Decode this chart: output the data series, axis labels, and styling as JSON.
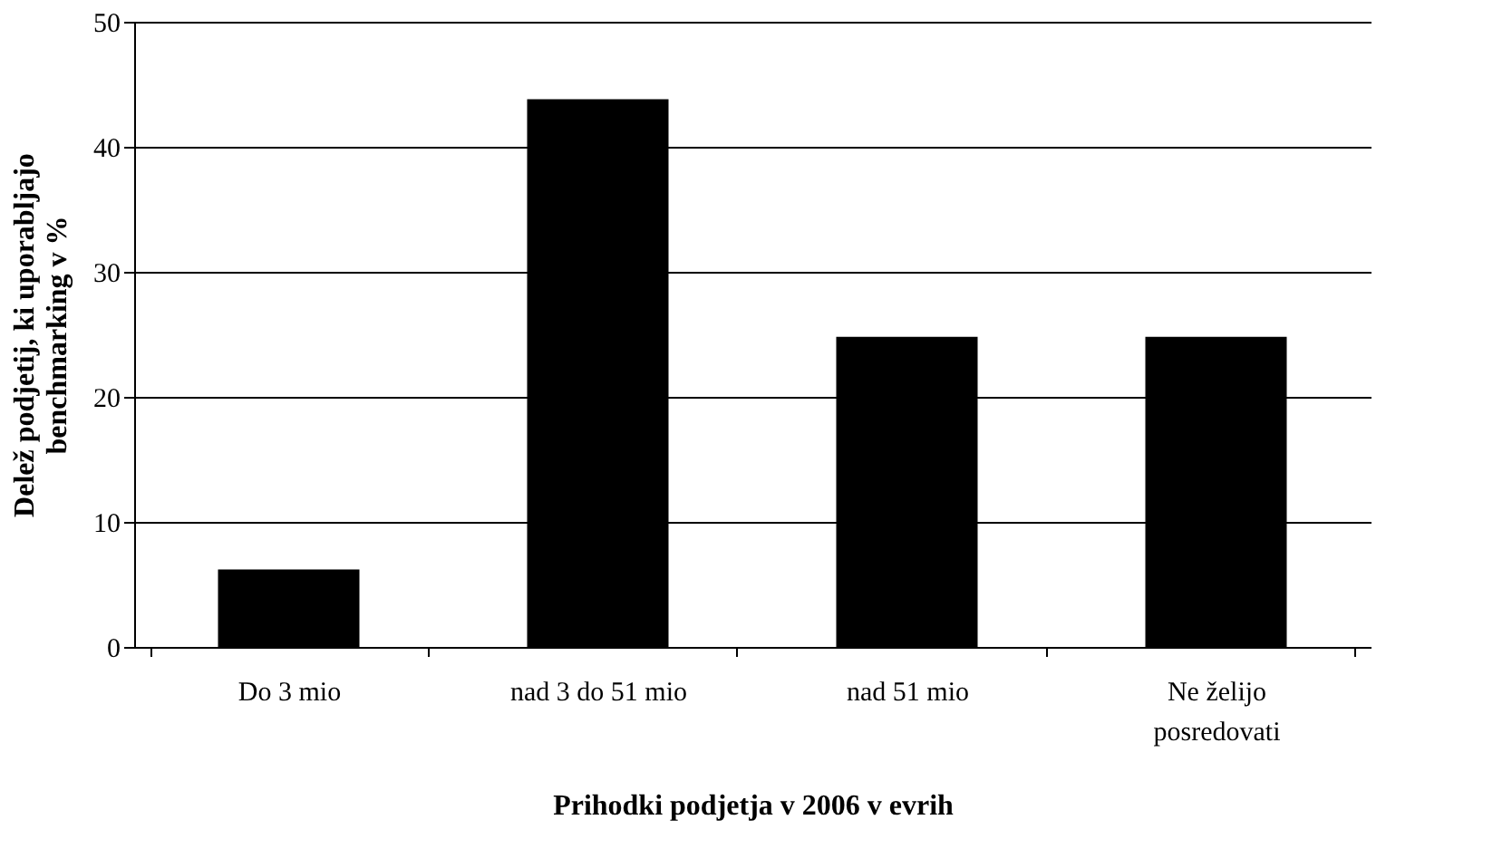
{
  "chart_data": {
    "type": "bar",
    "xlabel": "Prihodki  podjetja v 2006 v  evrih",
    "ylabel": "Delež podjetij, ki uporabljajo\nbenchmarking v %",
    "categories": [
      "Do 3 mio",
      "nad 3 do 51 mio",
      "nad 51 mio",
      "Ne želijo\nposredovati"
    ],
    "values": [
      6.2,
      43.8,
      24.8,
      24.8
    ],
    "color": "#000000",
    "ylim": [
      0,
      50
    ],
    "yticks": [
      0,
      10,
      20,
      30,
      40,
      50
    ],
    "grid": "y"
  }
}
